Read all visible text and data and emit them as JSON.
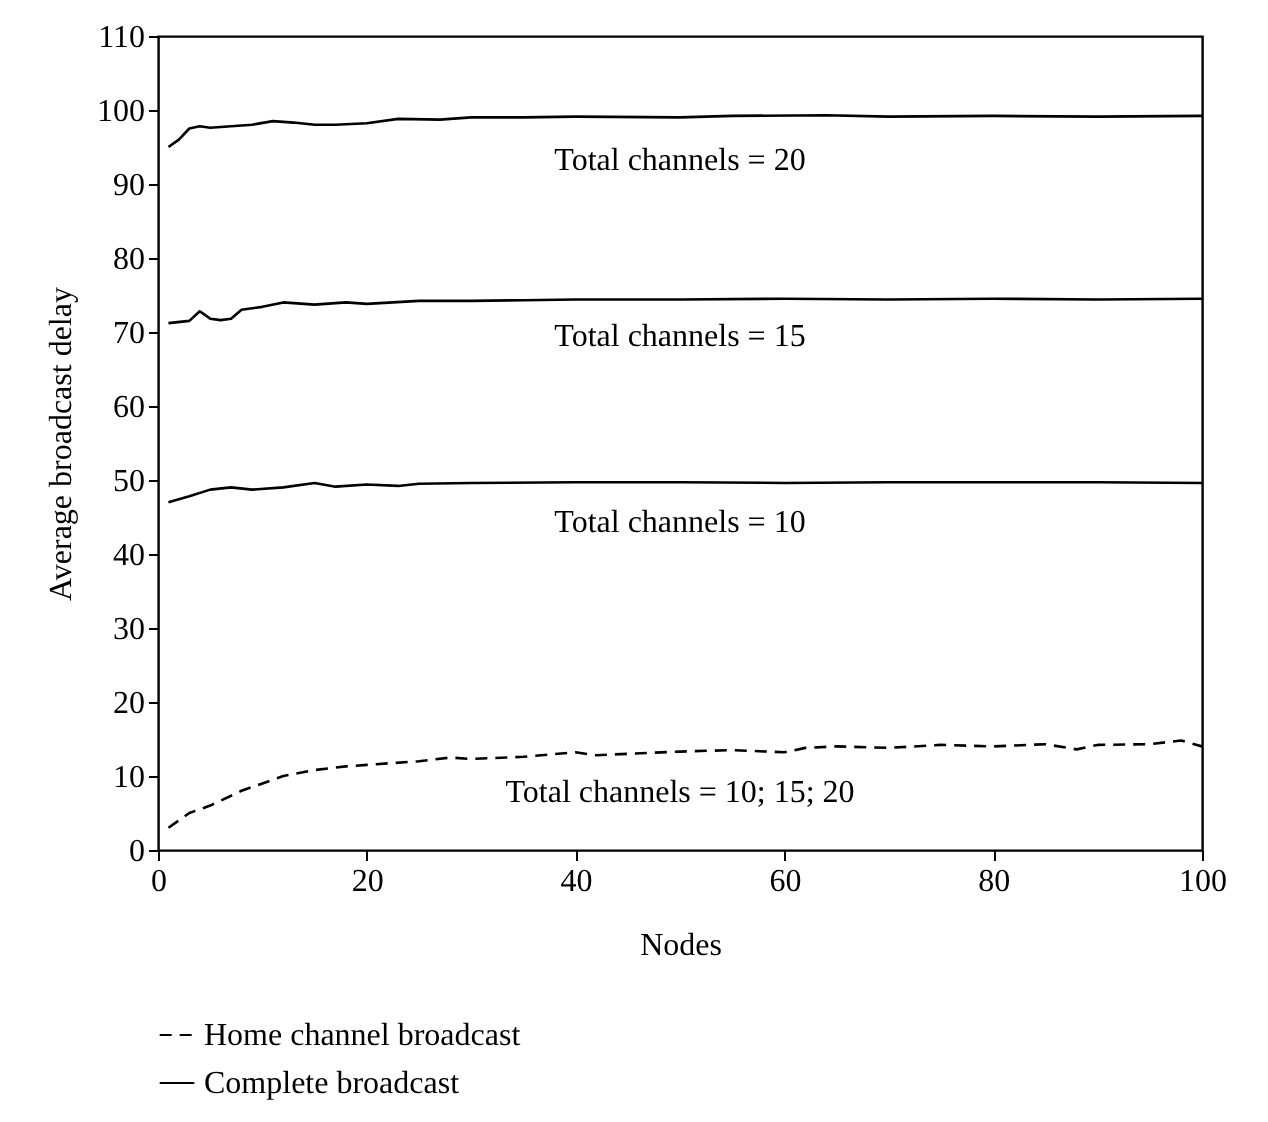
{
  "chart_data": {
    "type": "line",
    "xlabel": "Nodes",
    "ylabel": "Average broadcast delay",
    "xlim": [
      0,
      100
    ],
    "xticks": [
      0,
      20,
      40,
      60,
      80,
      100
    ],
    "ylim": [
      0,
      110
    ],
    "yticks": [
      0,
      10,
      20,
      30,
      40,
      50,
      60,
      70,
      80,
      90,
      100,
      110
    ],
    "grid": false,
    "legend": "bottom left",
    "marker": "none",
    "annotations": [
      "Total channels = 20",
      "Total channels = 15",
      "Total channels = 10",
      "Total channels = 10; 15; 20"
    ],
    "series": [
      {
        "name": "Home channel broadcast",
        "color": "#000000",
        "line_style": "dashed",
        "x": [
          1,
          3,
          5,
          8,
          10,
          12,
          15,
          18,
          20,
          25,
          28,
          30,
          35,
          40,
          42,
          45,
          50,
          55,
          60,
          62,
          65,
          70,
          75,
          80,
          85,
          88,
          90,
          95,
          98,
          100
        ],
        "values": [
          3,
          5,
          6,
          8,
          9,
          10,
          10.8,
          11.3,
          11.5,
          12,
          12.5,
          12.3,
          12.6,
          13.2,
          12.8,
          13,
          13.3,
          13.5,
          13.2,
          13.8,
          14,
          13.8,
          14.2,
          14,
          14.3,
          13.6,
          14.2,
          14.3,
          14.8,
          14
        ]
      },
      {
        "name": "Complete broadcast",
        "color": "#000000",
        "line_style": "solid",
        "x": [
          1,
          2,
          3,
          4,
          5,
          7,
          9,
          11,
          13,
          15,
          17,
          20,
          23,
          27,
          30,
          35,
          40,
          50,
          55,
          64,
          70,
          80,
          90,
          100
        ],
        "values": [
          95,
          96,
          97.5,
          97.8,
          97.6,
          97.8,
          98,
          98.5,
          98.3,
          98,
          98,
          98.2,
          98.8,
          98.7,
          99,
          99,
          99.1,
          99,
          99.2,
          99.3,
          99.1,
          99.2,
          99.1,
          99.2
        ]
      },
      {
        "color": "#000000",
        "line_style": "solid",
        "x": [
          1,
          3,
          4,
          5,
          6,
          7,
          8,
          10,
          12,
          15,
          18,
          20,
          25,
          30,
          35,
          40,
          50,
          60,
          70,
          80,
          90,
          100
        ],
        "values": [
          71.2,
          71.5,
          72.8,
          71.8,
          71.6,
          71.8,
          73,
          73.4,
          74,
          73.7,
          74,
          73.8,
          74.2,
          74.2,
          74.3,
          74.4,
          74.4,
          74.5,
          74.4,
          74.5,
          74.4,
          74.5
        ]
      },
      {
        "color": "#000000",
        "line_style": "solid",
        "x": [
          1,
          3,
          5,
          7,
          9,
          12,
          15,
          17,
          20,
          23,
          25,
          30,
          40,
          50,
          60,
          70,
          80,
          90,
          100
        ],
        "values": [
          47,
          47.8,
          48.7,
          49,
          48.7,
          49,
          49.6,
          49.1,
          49.4,
          49.2,
          49.5,
          49.6,
          49.7,
          49.7,
          49.6,
          49.7,
          49.7,
          49.7,
          49.6
        ]
      }
    ]
  }
}
